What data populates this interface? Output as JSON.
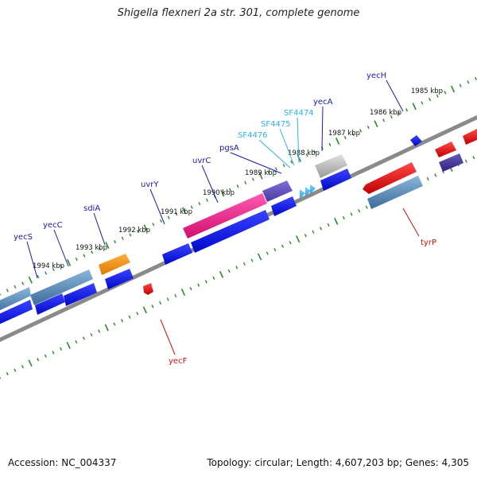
{
  "title": "Shigella flexneri 2a str. 301, complete genome",
  "footer": {
    "accession": "Accession: NC_004337",
    "summary": "Topology: circular; Length: 4,607,203 bp; Genes: 4,305"
  },
  "colors": {
    "backbone": "#8a8a8a",
    "tick": "#2a8a2a",
    "cds_forward": "#0a14e6",
    "cds_reverse": "#e00000",
    "label_dark": "#1a1aa8",
    "label_light": "#2ab4e6",
    "label_red": "#d01010"
  },
  "scale_labels": [
    {
      "kbp": 1994,
      "text": "1994 kbp"
    },
    {
      "kbp": 1993,
      "text": "1993 kbp"
    },
    {
      "kbp": 1992,
      "text": "1992 kbp"
    },
    {
      "kbp": 1991,
      "text": "1991 kbp"
    },
    {
      "kbp": 1990,
      "text": "1990 kbp"
    },
    {
      "kbp": 1989,
      "text": "1989 kbp"
    },
    {
      "kbp": 1988,
      "text": "1988 kbp"
    },
    {
      "kbp": 1987,
      "text": "1987 kbp"
    },
    {
      "kbp": 1986,
      "text": "1986 kbp"
    },
    {
      "kbp": 1985,
      "text": "1985 kbp"
    }
  ],
  "gene_labels": {
    "yecS": "yecS",
    "yecC": "yecC",
    "sdiA": "sdiA",
    "uvrY": "uvrY",
    "uvrC": "uvrC",
    "pgsA": "pgsA",
    "SF4476": "SF4476",
    "SF4475": "SF4475",
    "SF4474": "SF4474",
    "yecA": "yecA",
    "yecH": "yecH",
    "yecF": "yecF",
    "tyrP": "tyrP"
  }
}
